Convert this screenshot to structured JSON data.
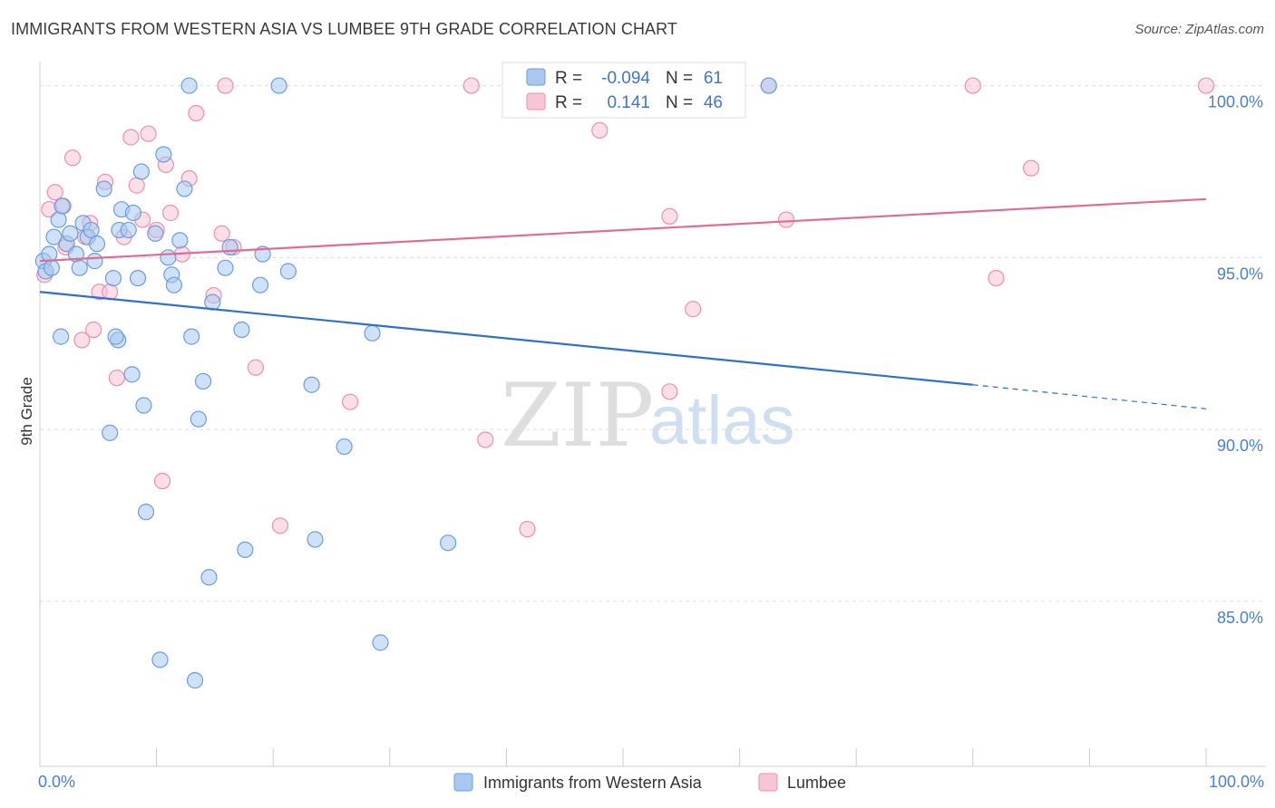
{
  "title": "IMMIGRANTS FROM WESTERN ASIA VS LUMBEE 9TH GRADE CORRELATION CHART",
  "source": "Source: ZipAtlas.com",
  "watermark": {
    "zip": "ZIP",
    "atlas": "atlas"
  },
  "colors": {
    "blue_fill": "#a8c8f0",
    "blue_stroke": "#6a9de0",
    "blue_line": "#2f6fd0",
    "pink_fill": "#f7c5d6",
    "pink_stroke": "#ea8fb0",
    "pink_line": "#e26a95",
    "grid": "#dddddd",
    "tick_text": "#4a7fd0"
  },
  "legend_stats": {
    "r_label": "R =",
    "n_label": "N =",
    "rows": [
      {
        "series": "blue",
        "r": "-0.094",
        "n": "61"
      },
      {
        "series": "pink",
        "r": "0.141",
        "n": "46"
      }
    ]
  },
  "chart_data": {
    "type": "scatter",
    "title": "IMMIGRANTS FROM WESTERN ASIA VS LUMBEE 9TH GRADE CORRELATION CHART",
    "xlabel": "",
    "ylabel": "9th Grade",
    "xlim": [
      0,
      100
    ],
    "ylim": [
      80.2,
      100.7
    ],
    "x_tick_labels": [
      "0.0%",
      "100.0%"
    ],
    "y_ticks": [
      85,
      90,
      95,
      100
    ],
    "y_tick_labels": [
      "85.0%",
      "90.0%",
      "95.0%",
      "100.0%"
    ],
    "grid": true,
    "series": [
      {
        "name": "Immigrants from Western Asia",
        "color": "blue",
        "r": -0.094,
        "n": 61,
        "trend": {
          "x0": 0,
          "y0": 94.0,
          "x1": 80,
          "y1": 91.3,
          "dash_to_x": 100,
          "dash_to_y": 90.6
        },
        "points": [
          [
            0.3,
            94.9
          ],
          [
            0.5,
            94.6
          ],
          [
            0.8,
            95.1
          ],
          [
            1.0,
            94.7
          ],
          [
            1.2,
            95.6
          ],
          [
            1.6,
            96.1
          ],
          [
            1.9,
            96.5
          ],
          [
            2.3,
            95.4
          ],
          [
            2.6,
            95.7
          ],
          [
            3.1,
            95.1
          ],
          [
            3.4,
            94.7
          ],
          [
            3.7,
            96.0
          ],
          [
            4.1,
            95.6
          ],
          [
            4.4,
            95.8
          ],
          [
            4.7,
            94.9
          ],
          [
            4.9,
            95.4
          ],
          [
            5.5,
            97.0
          ],
          [
            6.3,
            94.4
          ],
          [
            6.7,
            92.6
          ],
          [
            6.5,
            92.7
          ],
          [
            7.0,
            96.4
          ],
          [
            6.8,
            95.8
          ],
          [
            7.6,
            95.8
          ],
          [
            7.9,
            91.6
          ],
          [
            8.0,
            96.3
          ],
          [
            8.4,
            94.4
          ],
          [
            8.7,
            97.5
          ],
          [
            8.9,
            90.7
          ],
          [
            9.1,
            87.6
          ],
          [
            9.9,
            95.7
          ],
          [
            10.3,
            83.3
          ],
          [
            10.6,
            98.0
          ],
          [
            11.0,
            95.0
          ],
          [
            11.3,
            94.5
          ],
          [
            11.5,
            94.2
          ],
          [
            12.0,
            95.5
          ],
          [
            12.4,
            97.0
          ],
          [
            12.8,
            100.0
          ],
          [
            13.0,
            92.7
          ],
          [
            13.3,
            82.7
          ],
          [
            13.6,
            90.3
          ],
          [
            14.0,
            91.4
          ],
          [
            14.5,
            85.7
          ],
          [
            14.8,
            93.7
          ],
          [
            15.9,
            94.7
          ],
          [
            16.3,
            95.3
          ],
          [
            17.3,
            92.9
          ],
          [
            17.6,
            86.5
          ],
          [
            18.9,
            94.2
          ],
          [
            19.1,
            95.1
          ],
          [
            20.5,
            100.0
          ],
          [
            21.3,
            94.6
          ],
          [
            23.3,
            91.3
          ],
          [
            23.6,
            86.8
          ],
          [
            26.1,
            89.5
          ],
          [
            28.5,
            92.8
          ],
          [
            29.2,
            83.8
          ],
          [
            35.0,
            86.7
          ],
          [
            1.8,
            92.7
          ],
          [
            6.0,
            89.9
          ],
          [
            62.5,
            100.0
          ]
        ]
      },
      {
        "name": "Lumbee",
        "color": "pink",
        "r": 0.141,
        "n": 46,
        "trend": {
          "x0": 0,
          "y0": 94.9,
          "x1": 100,
          "y1": 96.7
        },
        "points": [
          [
            0.4,
            94.5
          ],
          [
            0.8,
            96.4
          ],
          [
            1.3,
            96.9
          ],
          [
            2.0,
            96.5
          ],
          [
            2.2,
            95.3
          ],
          [
            2.8,
            97.9
          ],
          [
            3.6,
            92.6
          ],
          [
            3.9,
            95.6
          ],
          [
            4.3,
            96.0
          ],
          [
            4.6,
            92.9
          ],
          [
            5.1,
            94.0
          ],
          [
            5.6,
            97.2
          ],
          [
            6.0,
            94.0
          ],
          [
            6.6,
            91.5
          ],
          [
            7.2,
            95.6
          ],
          [
            7.8,
            98.5
          ],
          [
            8.3,
            97.1
          ],
          [
            8.8,
            96.1
          ],
          [
            9.3,
            98.6
          ],
          [
            10.0,
            95.8
          ],
          [
            10.5,
            88.5
          ],
          [
            10.8,
            97.7
          ],
          [
            11.2,
            96.3
          ],
          [
            12.2,
            95.1
          ],
          [
            12.8,
            97.3
          ],
          [
            13.4,
            99.2
          ],
          [
            14.9,
            93.9
          ],
          [
            15.6,
            95.7
          ],
          [
            16.6,
            95.3
          ],
          [
            18.5,
            91.8
          ],
          [
            20.6,
            87.2
          ],
          [
            26.6,
            90.8
          ],
          [
            37.0,
            100.0
          ],
          [
            38.2,
            89.7
          ],
          [
            41.8,
            87.1
          ],
          [
            48.0,
            98.7
          ],
          [
            54.0,
            96.2
          ],
          [
            54.0,
            91.1
          ],
          [
            56.0,
            93.5
          ],
          [
            64.0,
            96.1
          ],
          [
            80.0,
            100.0
          ],
          [
            82.0,
            94.4
          ],
          [
            85.0,
            97.6
          ],
          [
            100.0,
            100.0
          ],
          [
            15.9,
            100.0
          ],
          [
            62.5,
            100.0
          ]
        ]
      }
    ]
  }
}
